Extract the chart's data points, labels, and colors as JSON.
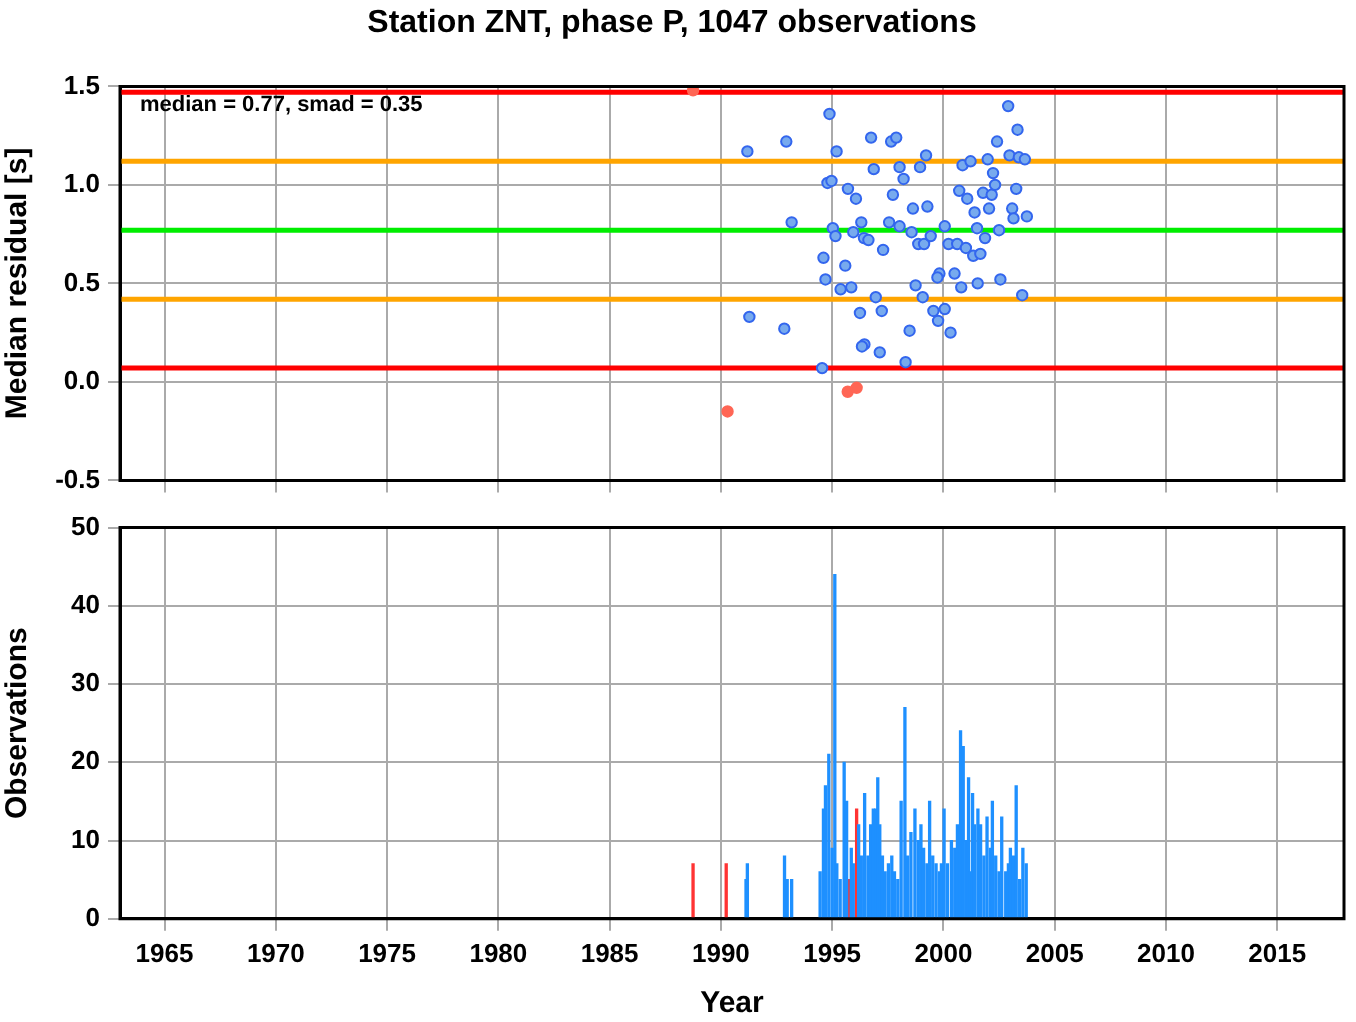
{
  "chart_data": [
    {
      "type": "scatter",
      "title": "Station ZNT, phase P, 1047 observations",
      "ylabel": "Median residual [s]",
      "xlim": [
        1963,
        2018
      ],
      "xticks": [
        1965,
        1970,
        1975,
        1980,
        1985,
        1990,
        1995,
        2000,
        2005,
        2010,
        2015
      ],
      "ylim": [
        -0.5,
        1.5
      ],
      "yticks": [
        -0.5,
        {
          "value": 0,
          "label": "0.0"
        },
        0.5,
        {
          "value": 1,
          "label": "1.0"
        },
        1.5
      ],
      "tick_labels": "y",
      "grid": true,
      "legend": false,
      "marker": "circle",
      "annotations": [
        "median = 0.77, smad = 0.35"
      ],
      "ref_lines": [
        {
          "axis": "y",
          "value": 1.47,
          "color": "#ff0000"
        },
        {
          "axis": "y",
          "value": 1.12,
          "color": "#ffa500"
        },
        {
          "axis": "y",
          "value": 0.77,
          "color": "#00ee00"
        },
        {
          "axis": "y",
          "value": 0.42,
          "color": "#ffa500"
        },
        {
          "axis": "y",
          "value": 0.07,
          "color": "#ff0000"
        }
      ],
      "series": [
        {
          "color": "#77aaee",
          "x": [
            1991.19,
            1992.94,
            1994.88,
            1996.75,
            1997.65,
            1997.88,
            1995.2,
            1993.18,
            1991.28,
            1992.85,
            1994.55,
            2002.91,
            2003.33,
            2002.41,
            2002.97,
            2003.39,
            2003.66,
            2000.86,
            2001.22,
            2001.99,
            1999.22,
            1998.03,
            1998.95,
            1998.21,
            1996.87,
            1994.79,
            1994.97,
            1995.71,
            1996.07,
            1997.73,
            1998.63,
            1999.28,
            2001.4,
            2002.05,
            2003.09,
            2003.15,
            2003.75,
            2000.71,
            2001.07,
            2001.78,
            2002.17,
            2002.32,
            2002.23,
            2003.27,
            1996.31,
            1995.03,
            1995.15,
            1995.95,
            1996.43,
            1996.63,
            1997.56,
            1998.03,
            1998.57,
            1998.87,
            1999.13,
            1999.43,
            2000.06,
            2000.23,
            2000.62,
            2001.01,
            2001.34,
            2001.66,
            2001.51,
            2001.87,
            2002.5,
            1997.29,
            1994.61,
            1995.59,
            1994.7,
            1995.38,
            1995.86,
            1996.96,
            1996.25,
            1997.23,
            1998.48,
            1996.45,
            1996.34,
            1997.14,
            1998.3,
            1998.75,
            1999.07,
            1999.55,
            1999.76,
            2000.06,
            2000.32,
            1999.82,
            1999.73,
            2000.5,
            2000.8,
            2001.54,
            2002.56,
            2003.54
          ],
          "values": [
            1.17,
            1.22,
            1.36,
            1.24,
            1.22,
            1.24,
            1.17,
            0.81,
            0.33,
            0.27,
            0.07,
            1.4,
            1.28,
            1.22,
            1.15,
            1.14,
            1.13,
            1.1,
            1.12,
            1.13,
            1.15,
            1.09,
            1.09,
            1.03,
            1.08,
            1.01,
            1.02,
            0.98,
            0.93,
            0.95,
            0.88,
            0.89,
            0.86,
            0.88,
            0.88,
            0.83,
            0.84,
            0.97,
            0.93,
            0.96,
            0.95,
            1.0,
            1.06,
            0.98,
            0.81,
            0.78,
            0.74,
            0.76,
            0.73,
            0.72,
            0.81,
            0.79,
            0.76,
            0.7,
            0.7,
            0.74,
            0.79,
            0.7,
            0.7,
            0.68,
            0.64,
            0.65,
            0.78,
            0.73,
            0.77,
            0.67,
            0.63,
            0.59,
            0.52,
            0.47,
            0.48,
            0.43,
            0.35,
            0.36,
            0.26,
            0.19,
            0.18,
            0.15,
            0.1,
            0.49,
            0.43,
            0.36,
            0.31,
            0.37,
            0.25,
            0.55,
            0.53,
            0.55,
            0.48,
            0.5,
            0.52,
            0.44
          ]
        },
        {
          "color": "#ff6655",
          "x": [
            1988.75,
            1990.3,
            1995.7,
            1996.1
          ],
          "values": [
            1.48,
            -0.15,
            -0.05,
            -0.03
          ]
        }
      ]
    },
    {
      "type": "bar",
      "xlabel": "Year",
      "ylabel": "Observations",
      "xlim": [
        1963,
        2018
      ],
      "xticks": [
        1965,
        1970,
        1975,
        1980,
        1985,
        1990,
        1995,
        2000,
        2005,
        2010,
        2015
      ],
      "ylim": [
        0,
        50
      ],
      "yticks": [
        0,
        10,
        20,
        30,
        40,
        50
      ],
      "grid": true,
      "legend": false,
      "series": [
        {
          "color": "#1e90ff",
          "x": [
            1991.13,
            1991.19,
            1992.86,
            1992.98,
            1993.18,
            1994.46,
            1994.61,
            1994.7,
            1994.85,
            1995.0,
            1995.12,
            1995.21,
            1995.36,
            1995.54,
            1995.65,
            1995.86,
            1995.95,
            1996.19,
            1996.31,
            1996.46,
            1996.61,
            1996.73,
            1996.85,
            1996.96,
            1997.05,
            1997.14,
            1997.26,
            1997.38,
            1997.53,
            1997.68,
            1997.8,
            1997.95,
            1998.1,
            1998.27,
            1998.39,
            1998.54,
            1998.72,
            1998.87,
            1998.99,
            1999.11,
            1999.26,
            1999.38,
            1999.52,
            1999.67,
            1999.82,
            1999.91,
            2000.03,
            2000.18,
            2000.36,
            2000.51,
            2000.63,
            2000.77,
            2000.89,
            2001.01,
            2001.13,
            2001.22,
            2001.31,
            2001.4,
            2001.55,
            2001.67,
            2001.82,
            2001.96,
            2002.11,
            2002.2,
            2002.35,
            2002.5,
            2002.62,
            2002.8,
            2002.92,
            2003.01,
            2003.15,
            2003.27,
            2003.42,
            2003.57,
            2003.72
          ],
          "values": [
            5,
            7,
            8,
            5,
            5,
            6,
            14,
            17,
            21,
            9,
            44,
            7,
            5,
            20,
            15,
            9,
            7,
            12,
            8,
            16,
            8,
            12,
            14,
            14,
            18,
            12,
            8,
            6,
            7,
            8,
            6,
            5,
            15,
            27,
            8,
            11,
            14,
            10,
            12,
            9,
            7,
            15,
            8,
            7,
            6,
            7,
            14,
            7,
            10,
            9,
            12,
            24,
            22,
            10,
            18,
            6,
            16,
            12,
            14,
            12,
            8,
            13,
            9,
            15,
            8,
            6,
            13,
            6,
            7,
            9,
            8,
            17,
            5,
            9,
            7
          ]
        },
        {
          "color": "#ff3333",
          "x": [
            1988.75,
            1990.24,
            1995.77,
            1996.1
          ],
          "values": [
            7,
            7,
            5,
            14
          ]
        }
      ]
    }
  ]
}
